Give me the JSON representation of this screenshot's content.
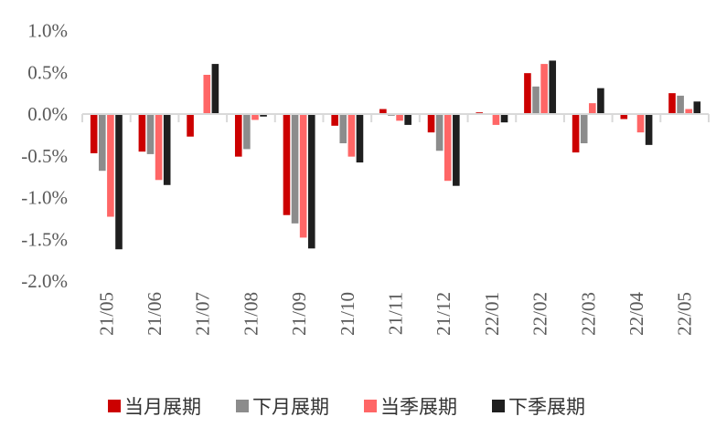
{
  "chart_data": {
    "type": "bar",
    "title": "",
    "xlabel": "",
    "ylabel": "",
    "ylim": [
      -2.0,
      1.0
    ],
    "yticks": [
      1.0,
      0.5,
      0.0,
      -0.5,
      -1.0,
      -1.5,
      -2.0
    ],
    "ytick_labels": [
      "1.0%",
      "0.5%",
      "0.0%",
      "-0.5%",
      "-1.0%",
      "-1.5%",
      "-2.0%"
    ],
    "grid": false,
    "legend_position": "bottom",
    "categories": [
      "21/05",
      "21/06",
      "21/07",
      "21/08",
      "21/09",
      "21/10",
      "21/11",
      "21/12",
      "22/01",
      "22/02",
      "22/03",
      "22/04",
      "22/05"
    ],
    "series": [
      {
        "name": "当月展期",
        "color": "#CC0000",
        "values": [
          -0.47,
          -0.45,
          -0.27,
          -0.51,
          -1.21,
          -0.14,
          0.06,
          -0.22,
          0.02,
          0.49,
          -0.46,
          -0.06,
          0.25
        ]
      },
      {
        "name": "下月展期",
        "color": "#8C8C8C",
        "values": [
          -0.68,
          -0.48,
          0.01,
          -0.42,
          -1.31,
          -0.35,
          -0.02,
          -0.44,
          0.01,
          0.33,
          -0.35,
          0.0,
          0.22
        ]
      },
      {
        "name": "当季展期",
        "color": "#FF6666",
        "values": [
          -1.23,
          -0.79,
          0.47,
          -0.07,
          -1.48,
          -0.51,
          -0.08,
          -0.8,
          -0.13,
          0.6,
          0.13,
          -0.22,
          0.06
        ]
      },
      {
        "name": "下季展期",
        "color": "#1F1F1F",
        "values": [
          -1.62,
          -0.85,
          0.6,
          -0.03,
          -1.61,
          -0.58,
          -0.13,
          -0.86,
          -0.1,
          0.64,
          0.31,
          -0.37,
          0.15
        ]
      }
    ]
  }
}
